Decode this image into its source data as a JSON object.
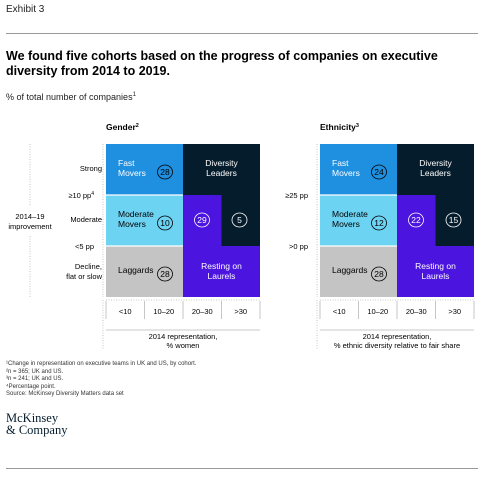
{
  "exhibit_label": "Exhibit 3",
  "title": "We found five cohorts based on the progress of companies on executive diversity from 2014 to 2019.",
  "subtitle": "% of total number of companies",
  "subtitle_note": "1",
  "colors": {
    "fast_movers": "#1f8fe0",
    "diversity_leaders": "#051c2c",
    "moderate_movers": "#6dd3f2",
    "laggards": "#c4c4c4",
    "resting_on_laurels": "#4b14df",
    "divider": "#b8b8b8",
    "text": "#000000"
  },
  "chart_data": [
    {
      "type": "heatmap",
      "title": "Gender",
      "title_note": "2",
      "ylabel": "2014–19 improvement",
      "y_boundaries": [
        "≥10 pp",
        "<5 pp"
      ],
      "y_boundary_note": "4",
      "y_categories": [
        "Strong",
        "Moderate",
        "Decline, flat or slow"
      ],
      "x_categories": [
        "<10",
        "10–20",
        "20–30",
        ">30"
      ],
      "xlabel": "2014 representation, % women",
      "cohorts": [
        {
          "name": "Fast Movers",
          "value": 28
        },
        {
          "name": "Diversity Leaders",
          "value": 5
        },
        {
          "name": "Moderate Movers",
          "value": 10
        },
        {
          "name": "Laggards",
          "value": 28
        },
        {
          "name": "Resting on Laurels",
          "value": 29
        }
      ]
    },
    {
      "type": "heatmap",
      "title": "Ethnicity",
      "title_note": "3",
      "y_boundaries": [
        "≥25 pp",
        ">0 pp"
      ],
      "y_categories": [],
      "x_categories": [
        "<10",
        "10–20",
        "20–30",
        ">30"
      ],
      "xlabel": "2014 representation, % ethnic diversity relative to fair share",
      "cohorts": [
        {
          "name": "Fast Movers",
          "value": 24
        },
        {
          "name": "Diversity Leaders",
          "value": 15
        },
        {
          "name": "Moderate Movers",
          "value": 12
        },
        {
          "name": "Laggards",
          "value": 28
        },
        {
          "name": "Resting on Laurels",
          "value": 22
        }
      ]
    }
  ],
  "footnotes": [
    "¹Change in representation on executive teams in UK and US, by cohort.",
    "²n = 365; UK and US.",
    "³n = 241; UK and US.",
    "⁴Percentage point.",
    "Source: McKinsey Diversity Matters data set"
  ],
  "logo": {
    "line1": "McKinsey",
    "line2": "& Company"
  }
}
